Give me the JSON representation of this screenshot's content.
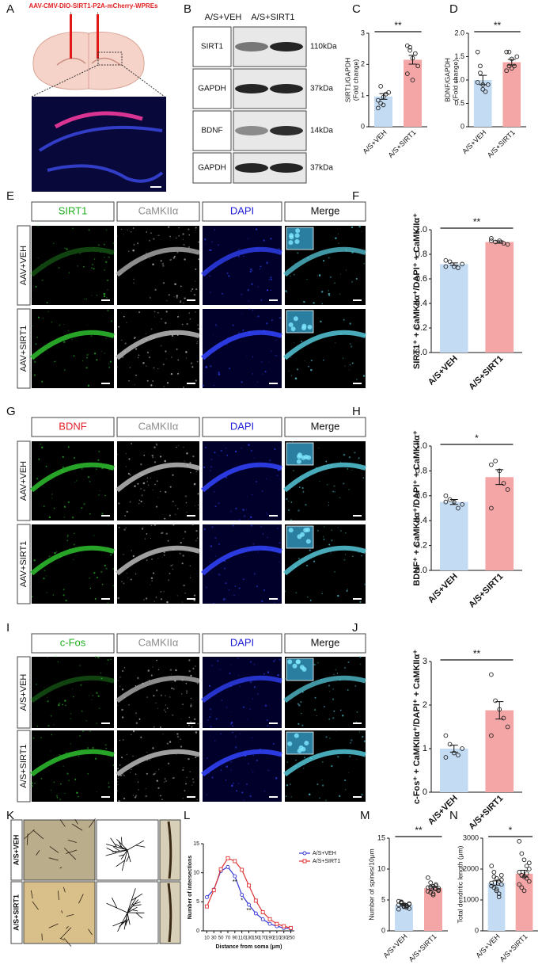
{
  "panel_labels": [
    "A",
    "B",
    "C",
    "D",
    "E",
    "F",
    "G",
    "H",
    "I",
    "J",
    "K",
    "L",
    "M",
    "N"
  ],
  "panel_a": {
    "title": "AAV-CMV-DIO-SIRT1-P2A-mCherry-WPREs"
  },
  "panel_b": {
    "columns": [
      "A/S+VEH",
      "A/S+SIRT1"
    ],
    "rows": [
      {
        "protein": "SIRT1",
        "size": "110kDa"
      },
      {
        "protein": "GAPDH",
        "size": "37kDa"
      },
      {
        "protein": "BDNF",
        "size": "14kDa"
      },
      {
        "protein": "GAPDH",
        "size": "37kDa"
      }
    ]
  },
  "image_panels": [
    {
      "channels": [
        "SIRT1",
        "CaMKIIα",
        "DAPI",
        "Merge"
      ],
      "colors": [
        "#1fae1f",
        "#8c8c8c",
        "#2020d8",
        "#111111"
      ],
      "rows": [
        "AAV+VEH",
        "AAV+SIRT1"
      ]
    },
    {
      "channels": [
        "BDNF",
        "CaMKIIα",
        "DAPI",
        "Merge"
      ],
      "colors": [
        "#e0202a",
        "#8c8c8c",
        "#2020d8",
        "#111111"
      ],
      "rows": [
        "AAV+VEH",
        "AAV+SIRT1"
      ]
    },
    {
      "channels": [
        "c-Fos",
        "CaMKIIα",
        "DAPI",
        "Merge"
      ],
      "colors": [
        "#1fae1f",
        "#8c8c8c",
        "#2020d8",
        "#111111"
      ],
      "rows": [
        "A/S+VEH",
        "A/S+SIRT1"
      ]
    }
  ],
  "panel_k": {
    "rows": [
      "A/S+VEH",
      "A/S+SIRT1"
    ]
  },
  "chart_data": [
    {
      "type": "bar",
      "ylabel": [
        "SIRT1/GAPDH",
        "(Fold change)"
      ],
      "categories": [
        "A/S+VEH",
        "A/S+SIRT1"
      ],
      "colors": [
        "#c4dbf4",
        "#f4a5a5"
      ],
      "values": [
        0.97,
        2.15
      ],
      "errors": [
        0.09,
        0.14
      ],
      "points": [
        [
          0.6,
          0.75,
          0.95,
          1.05,
          1.1,
          0.85,
          1.3,
          0.7
        ],
        [
          2.6,
          2.45,
          2.2,
          2.35,
          1.95,
          1.7,
          2.55,
          1.5
        ]
      ],
      "ylim": [
        0,
        3
      ],
      "yticks": [
        0,
        1,
        2,
        3
      ],
      "significance": "**"
    },
    {
      "type": "bar",
      "ylabel": [
        "BDNF/GAPDH",
        "(Fold change)"
      ],
      "categories": [
        "A/S+VEH",
        "A/S+SIRT1"
      ],
      "colors": [
        "#c4dbf4",
        "#f4a5a5"
      ],
      "values": [
        1.0,
        1.38
      ],
      "errors": [
        0.1,
        0.06
      ],
      "points": [
        [
          1.6,
          1.3,
          0.9,
          0.75,
          0.9,
          0.95,
          1.15,
          0.8
        ],
        [
          1.6,
          1.6,
          1.45,
          1.3,
          1.5,
          1.2,
          1.3,
          1.25
        ]
      ],
      "ylim": [
        0,
        2
      ],
      "yticks": [
        0,
        0.5,
        {
          "value": 1,
          "label": "1.0"
        },
        1.5,
        {
          "value": 2,
          "label": "2.0"
        }
      ],
      "significance": "**"
    },
    {
      "type": "bar",
      "ylabel": "SIRT1⁺ + CaMKIIα⁺/DAPI⁺ + CaMKIIα⁺",
      "categories": [
        "A/S+VEH",
        "A/S+SIRT1"
      ],
      "colors": [
        "#c4dbf4",
        "#f4a5a5"
      ],
      "values": [
        0.72,
        0.9
      ],
      "errors": [
        0.01,
        0.01
      ],
      "points": [
        [
          0.75,
          0.74,
          0.7,
          0.69,
          0.72,
          0.7
        ],
        [
          0.93,
          0.9,
          0.91,
          0.89,
          0.88,
          0.91
        ]
      ],
      "ylim": [
        0,
        1
      ],
      "yticks": [
        {
          "value": 0,
          "label": "0.0"
        },
        0.2,
        0.4,
        0.6,
        0.8,
        {
          "value": 1,
          "label": "1.0"
        }
      ],
      "significance": "**"
    },
    {
      "type": "bar",
      "ylabel": "BDNF⁺ + CaMKIIα⁺/DAPI⁺ + CaMKIIα⁺",
      "categories": [
        "A/S+VEH",
        "A/S+SIRT1"
      ],
      "colors": [
        "#c4dbf4",
        "#f4a5a5"
      ],
      "values": [
        0.55,
        0.75
      ],
      "errors": [
        0.02,
        0.06
      ],
      "points": [
        [
          0.6,
          0.57,
          0.55,
          0.5,
          0.53,
          0.55
        ],
        [
          0.85,
          0.88,
          0.8,
          0.7,
          0.65,
          0.5
        ]
      ],
      "ylim": [
        0,
        1
      ],
      "yticks": [
        {
          "value": 0,
          "label": "0.0"
        },
        0.2,
        0.4,
        0.6,
        0.8,
        {
          "value": 1,
          "label": "1.0"
        }
      ],
      "significance": "*"
    },
    {
      "type": "bar",
      "ylabel": "c-Fos⁺ + CaMKIIα⁺/DAPI⁺ + CaMKIIα⁺",
      "categories": [
        "A/S+VEH",
        "A/S+SIRT1"
      ],
      "colors": [
        "#c4dbf4",
        "#f4a5a5"
      ],
      "values": [
        1.0,
        1.88
      ],
      "errors": [
        0.08,
        0.2
      ],
      "points": [
        [
          1.3,
          1.1,
          0.9,
          0.85,
          1.0,
          0.8
        ],
        [
          2.7,
          2.1,
          1.9,
          1.7,
          1.5,
          1.3
        ]
      ],
      "ylim": [
        0,
        3
      ],
      "yticks": [
        0,
        1,
        2,
        3
      ],
      "significance": "**"
    },
    {
      "type": "line",
      "xlabel": "Distance from soma (μm)",
      "ylabel": "Number of intersections",
      "x": [
        10,
        30,
        50,
        70,
        90,
        110,
        130,
        150,
        170,
        190,
        210,
        230,
        250
      ],
      "xlim": [
        0,
        260
      ],
      "xticks": [
        10,
        30,
        50,
        70,
        90,
        110,
        130,
        150,
        170,
        190,
        210,
        230,
        250
      ],
      "ylim": [
        0,
        15
      ],
      "yticks": [
        0,
        5,
        10,
        15
      ],
      "series": [
        {
          "name": "A/S+VEH",
          "color": "#3535d8",
          "marker": "circle",
          "values": [
            5.8,
            7.1,
            10.3,
            11.0,
            9.4,
            6.2,
            4.5,
            3.0,
            2.0,
            1.2,
            0.8,
            0.5,
            0.4
          ]
        },
        {
          "name": "A/S+SIRT1",
          "color": "#e03535",
          "marker": "square",
          "values": [
            4.2,
            7.0,
            10.6,
            12.5,
            12.0,
            10.5,
            7.8,
            5.2,
            3.2,
            2.0,
            1.2,
            0.8,
            0.5
          ]
        }
      ],
      "annotations": [
        {
          "x": 90,
          "label": "**"
        },
        {
          "x": 110,
          "label": "*"
        },
        {
          "x": 130,
          "label": "**"
        }
      ]
    },
    {
      "type": "bar",
      "ylabel": "Number of spines/10μm",
      "categories": [
        "A/S+VEH",
        "A/S+SIRT1"
      ],
      "colors": [
        "#c4dbf4",
        "#f4a5a5"
      ],
      "values": [
        4.2,
        6.9
      ],
      "errors": [
        0.2,
        0.3
      ],
      "points": [
        [
          4.8,
          4.5,
          4.3,
          4.0,
          3.6,
          4.2,
          4.6,
          3.9,
          4.1,
          4.4,
          3.5,
          4.7,
          4.0,
          3.8,
          4.3
        ],
        [
          8.6,
          7.8,
          7.2,
          6.8,
          6.5,
          7.0,
          6.2,
          5.8,
          7.5,
          6.9,
          6.4,
          7.1,
          6.0,
          7.3,
          6.6
        ]
      ],
      "ylim": [
        0,
        15
      ],
      "yticks": [
        0,
        5,
        10,
        15
      ],
      "significance": "**"
    },
    {
      "type": "bar",
      "ylabel": "Total dendritic length (μm)",
      "categories": [
        "A/S+VEH",
        "A/S+SIRT1"
      ],
      "colors": [
        "#c4dbf4",
        "#f4a5a5"
      ],
      "values": [
        1550,
        1850
      ],
      "errors": [
        70,
        110
      ],
      "points": [
        [
          2100,
          1900,
          1700,
          1600,
          1500,
          1450,
          1400,
          1300,
          1200,
          1650,
          1550,
          1750,
          1350,
          1100,
          1800
        ],
        [
          2900,
          2500,
          2300,
          2100,
          2000,
          1900,
          1800,
          1750,
          1700,
          1600,
          1500,
          1400,
          1300,
          1850,
          2200
        ]
      ],
      "ylim": [
        0,
        3000
      ],
      "yticks": [
        0,
        1000,
        2000,
        3000
      ],
      "significance": "*"
    }
  ]
}
